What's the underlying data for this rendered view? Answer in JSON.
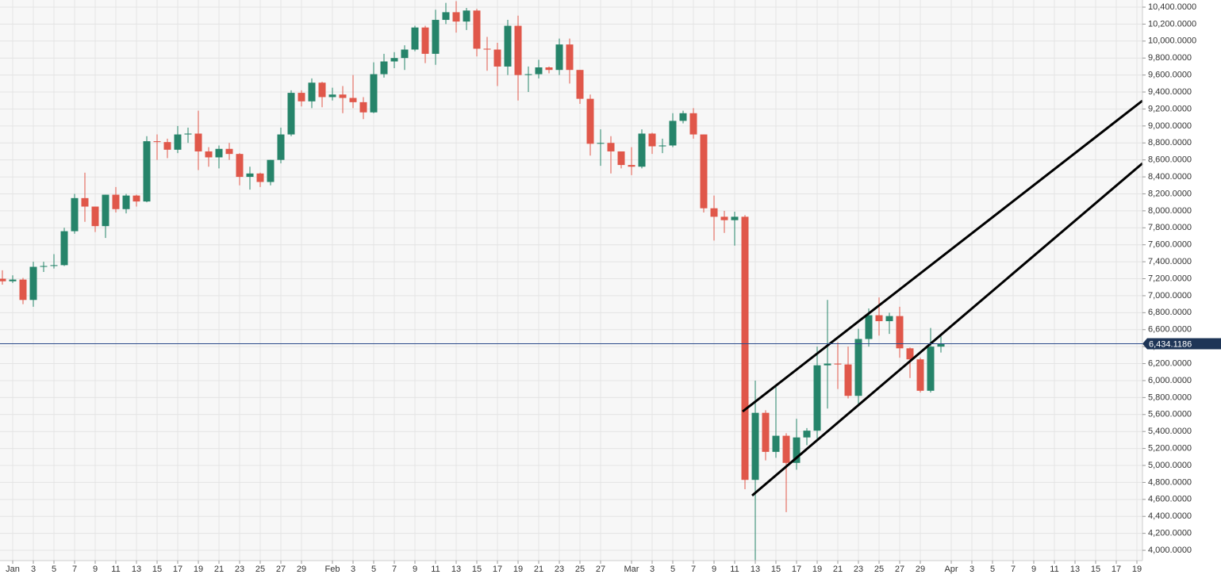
{
  "chart_data": {
    "type": "candlestick",
    "x": [
      "12-31",
      "01-01",
      "01-02",
      "01-03",
      "01-04",
      "01-05",
      "01-06",
      "01-07",
      "01-08",
      "01-09",
      "01-10",
      "01-11",
      "01-12",
      "01-13",
      "01-14",
      "01-15",
      "01-16",
      "01-17",
      "01-18",
      "01-19",
      "01-20",
      "01-21",
      "01-22",
      "01-23",
      "01-24",
      "01-25",
      "01-26",
      "01-27",
      "01-28",
      "01-29",
      "01-30",
      "01-31",
      "02-01",
      "02-02",
      "02-03",
      "02-04",
      "02-05",
      "02-06",
      "02-07",
      "02-08",
      "02-09",
      "02-10",
      "02-11",
      "02-12",
      "02-13",
      "02-14",
      "02-15",
      "02-16",
      "02-17",
      "02-18",
      "02-19",
      "02-20",
      "02-21",
      "02-22",
      "02-23",
      "02-24",
      "02-25",
      "02-26",
      "02-27",
      "02-28",
      "02-29",
      "03-01",
      "03-02",
      "03-03",
      "03-04",
      "03-05",
      "03-06",
      "03-07",
      "03-08",
      "03-09",
      "03-10",
      "03-11",
      "03-12",
      "03-13",
      "03-14",
      "03-15",
      "03-16",
      "03-17",
      "03-18",
      "03-19",
      "03-20",
      "03-21",
      "03-22",
      "03-23",
      "03-24",
      "03-25",
      "03-26",
      "03-27",
      "03-28",
      "03-29",
      "03-30",
      "03-31"
    ],
    "open": [
      7200,
      7170,
      7190,
      6950,
      7340,
      7350,
      7360,
      7760,
      8150,
      8050,
      7820,
      8190,
      8020,
      8180,
      8110,
      8820,
      8810,
      8720,
      8900,
      8910,
      8700,
      8630,
      8730,
      8670,
      8400,
      8440,
      8340,
      8600,
      8900,
      9390,
      9290,
      9510,
      9340,
      9370,
      9330,
      9280,
      9160,
      9610,
      9760,
      9800,
      9900,
      10160,
      9850,
      10250,
      10340,
      10230,
      10360,
      9910,
      9900,
      9700,
      10180,
      9600,
      9610,
      9690,
      9660,
      9960,
      9660,
      9320,
      8790,
      8800,
      8700,
      8540,
      8520,
      8910,
      8760,
      8770,
      9060,
      9150,
      8900,
      8030,
      7930,
      7890,
      7930,
      4830,
      5620,
      5160,
      5350,
      5030,
      5330,
      5410,
      6180,
      6200,
      6190,
      5820,
      6490,
      6770,
      6700,
      6760,
      6380,
      6250,
      5880,
      6400
    ],
    "high": [
      7300,
      7240,
      7210,
      7400,
      7400,
      7490,
      7800,
      8200,
      8450,
      8050,
      8190,
      8280,
      8200,
      8190,
      8880,
      8900,
      8850,
      9000,
      8980,
      9180,
      8750,
      8770,
      8800,
      8680,
      8520,
      8450,
      8600,
      8980,
      9420,
      9420,
      9560,
      9520,
      9450,
      9470,
      9600,
      9340,
      9750,
      9850,
      9870,
      9950,
      10180,
      10180,
      10370,
      10450,
      10470,
      10390,
      10380,
      10050,
      9980,
      10250,
      10300,
      9700,
      9780,
      9700,
      10030,
      10030,
      9660,
      9370,
      8960,
      8880,
      8700,
      8750,
      8960,
      8920,
      8850,
      9150,
      9180,
      9210,
      8900,
      8180,
      8000,
      7990,
      7950,
      6000,
      5650,
      5950,
      5380,
      5550,
      5440,
      6400,
      6950,
      6450,
      6400,
      6610,
      6850,
      6980,
      6800,
      6870,
      6390,
      6270,
      6620,
      6520
    ],
    "low": [
      7130,
      7150,
      6900,
      6870,
      7280,
      7320,
      7350,
      7730,
      7870,
      7750,
      7680,
      7980,
      7970,
      8050,
      8100,
      8600,
      8620,
      8680,
      8800,
      8480,
      8520,
      8500,
      8600,
      8300,
      8250,
      8280,
      8300,
      8560,
      8880,
      9230,
      9210,
      9220,
      9300,
      9150,
      9210,
      9080,
      9150,
      9570,
      9680,
      9660,
      9880,
      9740,
      9720,
      10200,
      10100,
      10130,
      9820,
      9650,
      9470,
      9600,
      9300,
      9400,
      9560,
      9620,
      9600,
      9500,
      9260,
      8650,
      8530,
      8440,
      8500,
      8420,
      8500,
      8670,
      8680,
      8750,
      9030,
      8850,
      7980,
      7650,
      7740,
      7590,
      4720,
      3880,
      5060,
      5090,
      4450,
      4950,
      5240,
      5300,
      5670,
      5900,
      5790,
      5700,
      6400,
      6530,
      6550,
      6270,
      6030,
      5860,
      5860,
      6330
    ],
    "close": [
      7170,
      7190,
      6950,
      7340,
      7350,
      7360,
      7760,
      8150,
      8050,
      7820,
      8190,
      8020,
      8180,
      8110,
      8820,
      8810,
      8720,
      8900,
      8910,
      8700,
      8630,
      8730,
      8670,
      8400,
      8440,
      8340,
      8600,
      8900,
      9390,
      9290,
      9510,
      9340,
      9370,
      9330,
      9280,
      9160,
      9610,
      9760,
      9800,
      9900,
      10160,
      9850,
      10250,
      10340,
      10230,
      10360,
      9910,
      9900,
      9700,
      10180,
      9600,
      9610,
      9690,
      9660,
      9960,
      9660,
      9320,
      8790,
      8800,
      8700,
      8540,
      8520,
      8910,
      8760,
      8770,
      9060,
      9150,
      8900,
      8030,
      7930,
      7890,
      7930,
      4830,
      5620,
      5160,
      5350,
      5030,
      5330,
      5410,
      6180,
      6200,
      6190,
      5820,
      6490,
      6770,
      6700,
      6760,
      6380,
      6250,
      5880,
      6400,
      6434.1186
    ],
    "up_color": "#26846a",
    "down_color": "#e0574a",
    "ylim": [
      3879,
      10484
    ],
    "yticks": [
      {
        "value": 4000,
        "label": "4,000.0000"
      },
      {
        "value": 4200,
        "label": "4,200.0000"
      },
      {
        "value": 4400,
        "label": "4,400.0000"
      },
      {
        "value": 4600,
        "label": "4,600.0000"
      },
      {
        "value": 4800,
        "label": "4,800.0000"
      },
      {
        "value": 5000,
        "label": "5,000.0000"
      },
      {
        "value": 5200,
        "label": "5,200.0000"
      },
      {
        "value": 5400,
        "label": "5,400.0000"
      },
      {
        "value": 5600,
        "label": "5,600.0000"
      },
      {
        "value": 5800,
        "label": "5,800.0000"
      },
      {
        "value": 6000,
        "label": "6,000.0000"
      },
      {
        "value": 6200,
        "label": "6,200.0000"
      },
      {
        "value": 6400,
        "label": "6,400.0000"
      },
      {
        "value": 6600,
        "label": "6,600.0000"
      },
      {
        "value": 6800,
        "label": "6,800.0000"
      },
      {
        "value": 7000,
        "label": "7,000.0000"
      },
      {
        "value": 7200,
        "label": "7,200.0000"
      },
      {
        "value": 7400,
        "label": "7,400.0000"
      },
      {
        "value": 7600,
        "label": "7,600.0000"
      },
      {
        "value": 7800,
        "label": "7,800.0000"
      },
      {
        "value": 8000,
        "label": "8,000.0000"
      },
      {
        "value": 8200,
        "label": "8,200.0000"
      },
      {
        "value": 8400,
        "label": "8,400.0000"
      },
      {
        "value": 8600,
        "label": "8,600.0000"
      },
      {
        "value": 8800,
        "label": "8,800.0000"
      },
      {
        "value": 9000,
        "label": "9,000.0000"
      },
      {
        "value": 9200,
        "label": "9,200.0000"
      },
      {
        "value": 9400,
        "label": "9,400.0000"
      },
      {
        "value": 9600,
        "label": "9,600.0000"
      },
      {
        "value": 9800,
        "label": "9,800.0000"
      },
      {
        "value": 10000,
        "label": "10,000.0000"
      },
      {
        "value": 10200,
        "label": "10,200.0000"
      },
      {
        "value": 10400,
        "label": "10,400.0000"
      }
    ],
    "xticks": [
      {
        "value": "01-01",
        "label": "Jan"
      },
      {
        "value": "01-03",
        "label": "3"
      },
      {
        "value": "01-05",
        "label": "5"
      },
      {
        "value": "01-07",
        "label": "7"
      },
      {
        "value": "01-09",
        "label": "9"
      },
      {
        "value": "01-11",
        "label": "11"
      },
      {
        "value": "01-13",
        "label": "13"
      },
      {
        "value": "01-15",
        "label": "15"
      },
      {
        "value": "01-17",
        "label": "17"
      },
      {
        "value": "01-19",
        "label": "19"
      },
      {
        "value": "01-21",
        "label": "21"
      },
      {
        "value": "01-23",
        "label": "23"
      },
      {
        "value": "01-25",
        "label": "25"
      },
      {
        "value": "01-27",
        "label": "27"
      },
      {
        "value": "01-29",
        "label": "29"
      },
      {
        "value": "02-01",
        "label": "Feb"
      },
      {
        "value": "02-03",
        "label": "3"
      },
      {
        "value": "02-05",
        "label": "5"
      },
      {
        "value": "02-07",
        "label": "7"
      },
      {
        "value": "02-09",
        "label": "9"
      },
      {
        "value": "02-11",
        "label": "11"
      },
      {
        "value": "02-13",
        "label": "13"
      },
      {
        "value": "02-15",
        "label": "15"
      },
      {
        "value": "02-17",
        "label": "17"
      },
      {
        "value": "02-19",
        "label": "19"
      },
      {
        "value": "02-21",
        "label": "21"
      },
      {
        "value": "02-23",
        "label": "23"
      },
      {
        "value": "02-25",
        "label": "25"
      },
      {
        "value": "02-27",
        "label": "27"
      },
      {
        "value": "03-01",
        "label": "Mar"
      },
      {
        "value": "03-03",
        "label": "3"
      },
      {
        "value": "03-05",
        "label": "5"
      },
      {
        "value": "03-07",
        "label": "7"
      },
      {
        "value": "03-09",
        "label": "9"
      },
      {
        "value": "03-11",
        "label": "11"
      },
      {
        "value": "03-13",
        "label": "13"
      },
      {
        "value": "03-15",
        "label": "15"
      },
      {
        "value": "03-17",
        "label": "17"
      },
      {
        "value": "03-19",
        "label": "19"
      },
      {
        "value": "03-21",
        "label": "21"
      },
      {
        "value": "03-23",
        "label": "23"
      },
      {
        "value": "03-25",
        "label": "25"
      },
      {
        "value": "03-27",
        "label": "27"
      },
      {
        "value": "03-29",
        "label": "29"
      },
      {
        "value": "04-01",
        "label": "Apr"
      },
      {
        "value": "04-03",
        "label": "3"
      },
      {
        "value": "04-05",
        "label": "5"
      },
      {
        "value": "04-07",
        "label": "7"
      },
      {
        "value": "04-09",
        "label": "9"
      },
      {
        "value": "04-11",
        "label": "11"
      },
      {
        "value": "04-13",
        "label": "13"
      },
      {
        "value": "04-15",
        "label": "15"
      },
      {
        "value": "04-17",
        "label": "17"
      },
      {
        "value": "04-19",
        "label": "19"
      }
    ],
    "last_price": {
      "value": 6434.1186,
      "label": "6,434.1186"
    },
    "grid": true
  }
}
